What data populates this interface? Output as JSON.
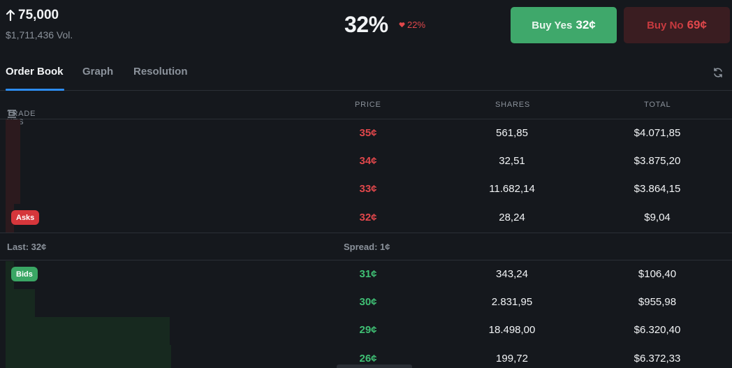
{
  "market": {
    "title": "75,000",
    "volume": "$1,711,436 Vol.",
    "probability": "32%",
    "change": "22%"
  },
  "buttons": {
    "buy_yes_label": "Buy Yes",
    "buy_yes_price": "32¢",
    "buy_no_label": "Buy No",
    "buy_no_price": "69¢"
  },
  "tabs": [
    "Order Book",
    "Graph",
    "Resolution"
  ],
  "columns": {
    "trade": "TRADE YES",
    "price": "PRICE",
    "shares": "SHARES",
    "total": "TOTAL"
  },
  "asks": [
    {
      "price": "35¢",
      "shares": "561,85",
      "total": "$4.071,85"
    },
    {
      "price": "34¢",
      "shares": "32,51",
      "total": "$3.875,20"
    },
    {
      "price": "33¢",
      "shares": "11.682,14",
      "total": "$3.864,15"
    },
    {
      "price": "32¢",
      "shares": "28,24",
      "total": "$9,04"
    }
  ],
  "asks_badge": "Asks",
  "spread_info": {
    "last": "Last: 32¢",
    "spread": "Spread: 1¢"
  },
  "bids_badge": "Bids",
  "bids": [
    {
      "price": "31¢",
      "shares": "343,24",
      "total": "$106,40"
    },
    {
      "price": "30¢",
      "shares": "2.831,95",
      "total": "$955,98"
    },
    {
      "price": "29¢",
      "shares": "18.498,00",
      "total": "$6.320,40"
    },
    {
      "price": "26¢",
      "shares": "199,72",
      "total": "$6.372,33"
    }
  ],
  "colors": {
    "yes_green": "#3fa86b",
    "no_red": "#e0474b",
    "accent_blue": "#2d8cf0",
    "background": "#15181d"
  }
}
